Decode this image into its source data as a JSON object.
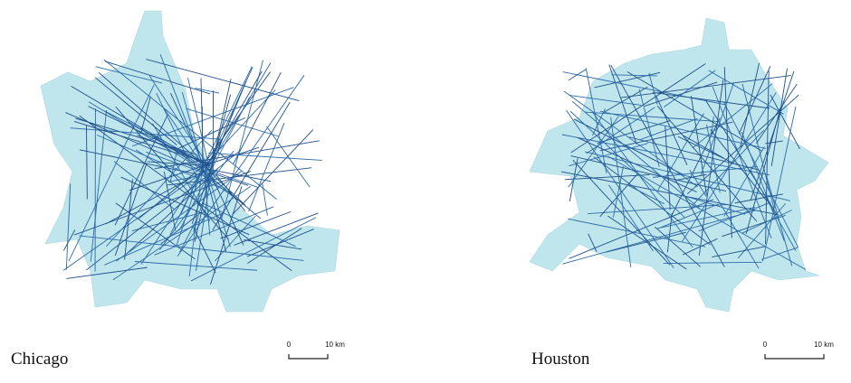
{
  "panels": [
    {
      "label": "Chicago",
      "scale": {
        "start": "0",
        "end": "10 km"
      }
    },
    {
      "label": "Houston",
      "scale": {
        "start": "0",
        "end": "10 km"
      }
    }
  ]
}
